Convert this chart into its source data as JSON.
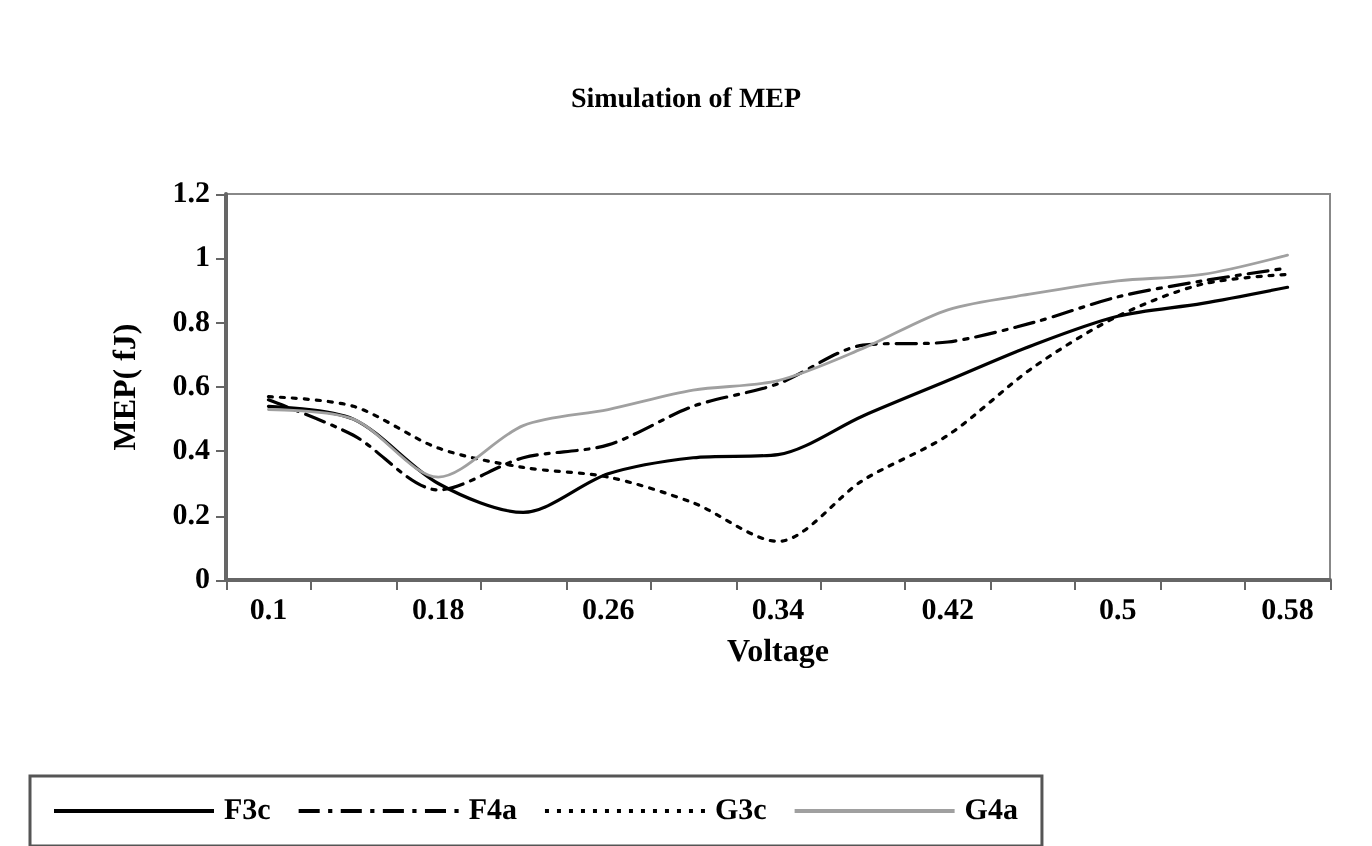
{
  "chart_data": {
    "type": "line",
    "title": "Simulation of MEP",
    "xlabel": "Voltage",
    "ylabel": "MEP( fJ)",
    "categories": [
      "0.1",
      null,
      "0.18",
      null,
      "0.26",
      null,
      "0.34",
      null,
      "0.42",
      null,
      "0.5",
      null,
      "0.58"
    ],
    "ylim": [
      0,
      1.2
    ],
    "yticks": [
      0,
      0.2,
      0.4,
      0.6,
      0.8,
      1,
      1.2
    ],
    "grid": false,
    "legend": "bottom",
    "marker": "none",
    "series": [
      {
        "name": "F3c",
        "color": "#000000",
        "line_style": "solid",
        "values": [
          0.54,
          0.5,
          0.3,
          0.21,
          0.33,
          0.38,
          0.39,
          0.51,
          0.62,
          0.73,
          0.82,
          0.86,
          0.91
        ]
      },
      {
        "name": "F4a",
        "color": "#000000",
        "line_style": "dashed",
        "values": [
          0.56,
          0.45,
          0.28,
          0.38,
          0.42,
          0.54,
          0.61,
          0.73,
          0.74,
          0.8,
          0.88,
          0.93,
          0.97
        ]
      },
      {
        "name": "G3c",
        "color": "#000000",
        "line_style": "dotted",
        "values": [
          0.57,
          0.54,
          0.41,
          0.35,
          0.32,
          0.24,
          0.12,
          0.31,
          0.45,
          0.66,
          0.82,
          0.92,
          0.95
        ]
      },
      {
        "name": "G4a",
        "color": "#a0a0a0",
        "line_style": "solid",
        "values": [
          0.53,
          0.5,
          0.32,
          0.48,
          0.53,
          0.59,
          0.62,
          0.72,
          0.84,
          0.89,
          0.93,
          0.95,
          1.01
        ]
      }
    ]
  }
}
